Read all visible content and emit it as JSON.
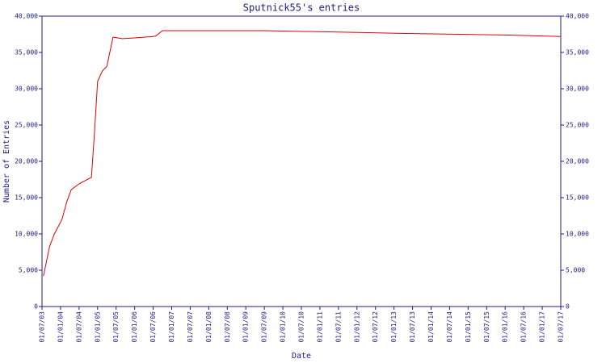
{
  "chart_data": {
    "type": "line",
    "title": "Sputnick55's entries",
    "x_label": "Date",
    "y_label": "Number of Entries",
    "x": [
      "15/07/03",
      "15/09/03",
      "01/11/03",
      "15/01/04",
      "01/03/04",
      "15/04/04",
      "01/07/04",
      "01/11/04",
      "01/12/04",
      "01/01/05",
      "15/02/05",
      "01/04/05",
      "01/06/05",
      "01/09/05",
      "01/01/06",
      "01/07/06",
      "01/08/06",
      "01/10/06",
      "01/07/09",
      "01/07/11",
      "01/07/13",
      "01/01/16",
      "01/07/17"
    ],
    "series": [
      {
        "name": "Sputnick55",
        "color": "#e00000",
        "values": [
          4200,
          8300,
          10000,
          12000,
          14400,
          16100,
          16900,
          17800,
          24000,
          31000,
          32400,
          33100,
          37100,
          36900,
          37000,
          37200,
          37300,
          38000,
          38000,
          37800,
          37600,
          37400,
          37200
        ]
      }
    ],
    "xlim": [
      "01/07/03",
      "01/07/17"
    ],
    "xticks": [
      "01/07/03",
      "01/01/04",
      "01/07/04",
      "01/01/05",
      "01/07/05",
      "01/01/06",
      "01/07/06",
      "01/01/07",
      "01/07/07",
      "01/01/08",
      "01/07/08",
      "01/01/09",
      "01/07/09",
      "01/01/10",
      "01/07/10",
      "01/01/11",
      "01/07/11",
      "01/01/12",
      "01/07/12",
      "01/01/13",
      "01/07/13",
      "01/01/14",
      "01/07/14",
      "01/01/15",
      "01/07/15",
      "01/01/16",
      "01/07/16",
      "01/01/17",
      "01/07/17"
    ],
    "ylim": [
      0,
      40000
    ],
    "yticks": [
      0,
      {
        "value": 5000,
        "label": "5,000"
      },
      {
        "value": 10000,
        "label": "10,000"
      },
      {
        "value": 15000,
        "label": "15,000"
      },
      {
        "value": 20000,
        "label": "20,000"
      },
      {
        "value": 25000,
        "label": "25,000"
      },
      {
        "value": 30000,
        "label": "30,000"
      },
      {
        "value": 35000,
        "label": "35,000"
      },
      {
        "value": 40000,
        "label": "40,000"
      }
    ],
    "axis_color": "#1c1c80",
    "grid": false
  }
}
